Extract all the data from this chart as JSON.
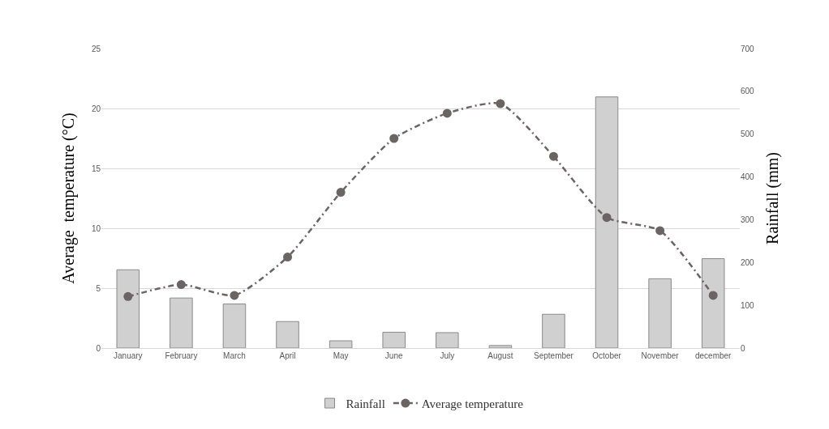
{
  "chart_data": {
    "type": "bar",
    "categories": [
      "January",
      "February",
      "March",
      "April",
      "May",
      "June",
      "July",
      "August",
      "September",
      "October",
      "November",
      "december"
    ],
    "series": [
      {
        "name": "Rainfall",
        "axis": "y2",
        "color": "#d0d0d0",
        "values": [
          183,
          117,
          103,
          62,
          17,
          37,
          36,
          6,
          79,
          587,
          162,
          209
        ]
      },
      {
        "name": "Average temperature",
        "type": "line",
        "axis": "y",
        "color": "#6b6465",
        "marker": "circle",
        "line_style": "dashed",
        "values": [
          4.3,
          5.3,
          4.4,
          7.6,
          13.0,
          17.5,
          19.6,
          20.4,
          16.0,
          10.9,
          9.8,
          4.4
        ]
      }
    ],
    "ylabel": "Average  temperature (°C)",
    "y2label": "Rainfall (mm)",
    "ylim": [
      0,
      25
    ],
    "yticks": [
      0,
      5,
      10,
      15,
      20,
      25
    ],
    "y2lim": [
      0,
      700
    ],
    "y2ticks": [
      0,
      100,
      200,
      300,
      400,
      500,
      600,
      700
    ],
    "grid": "y",
    "legend": "bottom"
  }
}
